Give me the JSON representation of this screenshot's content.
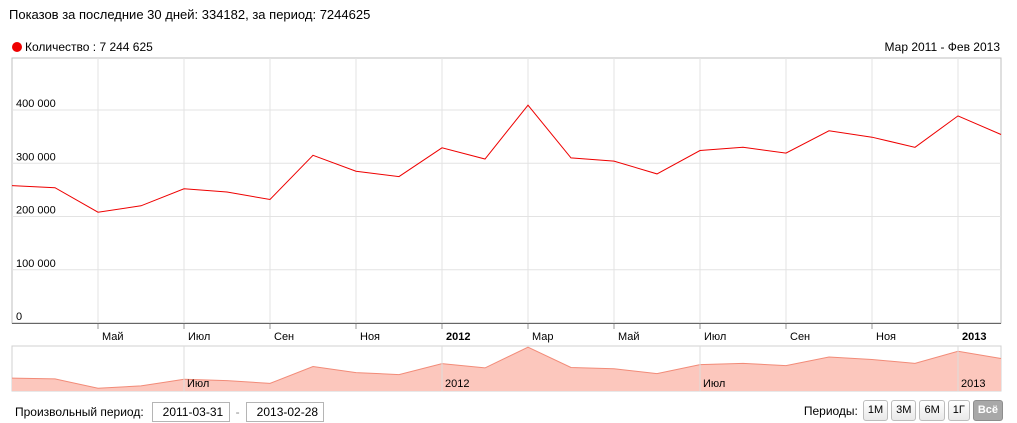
{
  "header": {
    "label_30": "Показов за последние 30 дней:",
    "value_30": "334182",
    "label_period": ", за период:",
    "value_period": "7244625"
  },
  "legend": {
    "label": "Количество : 7 244 625",
    "color": "#ee0000"
  },
  "range_label": "Мар 2011 - Фев 2013",
  "chart_data": {
    "type": "line",
    "x": [
      "2011-03",
      "2011-04",
      "2011-05",
      "2011-06",
      "2011-07",
      "2011-08",
      "2011-09",
      "2011-10",
      "2011-11",
      "2011-12",
      "2012-01",
      "2012-02",
      "2012-03",
      "2012-04",
      "2012-05",
      "2012-06",
      "2012-07",
      "2012-08",
      "2012-09",
      "2012-10",
      "2012-11",
      "2012-12",
      "2013-01",
      "2013-02"
    ],
    "series": [
      {
        "color": "#ee0000",
        "values": [
          258000,
          254000,
          208000,
          220000,
          252000,
          246000,
          232000,
          315000,
          285000,
          275000,
          329000,
          308000,
          409000,
          310000,
          304000,
          280000,
          324000,
          330000,
          319000,
          361000,
          349000,
          330000,
          389000,
          354000
        ]
      }
    ],
    "ylim": [
      0,
      400000
    ],
    "yticks": [
      "0",
      "100 000",
      "200 000",
      "300 000",
      "400 000"
    ],
    "xticks": [
      {
        "label": "Май",
        "bold": false
      },
      {
        "label": "Июл",
        "bold": false
      },
      {
        "label": "Сен",
        "bold": false
      },
      {
        "label": "Ноя",
        "bold": false
      },
      {
        "label": "2012",
        "bold": true
      },
      {
        "label": "Мар",
        "bold": false
      },
      {
        "label": "Май",
        "bold": false
      },
      {
        "label": "Июл",
        "bold": false
      },
      {
        "label": "Сен",
        "bold": false
      },
      {
        "label": "Ноя",
        "bold": false
      },
      {
        "label": "2013",
        "bold": true
      }
    ],
    "navigator_labels": [
      "Июл",
      "2012",
      "Июл",
      "2013"
    ],
    "grid": true
  },
  "footer": {
    "custom_period_label": "Произвольный период:",
    "date_from": "2011-03-31",
    "date_to": "2013-02-28",
    "dash": "-",
    "periods_label": "Периоды:",
    "buttons": [
      "1М",
      "3М",
      "6М",
      "1Г",
      "Всё"
    ],
    "active_button": "Всё"
  }
}
